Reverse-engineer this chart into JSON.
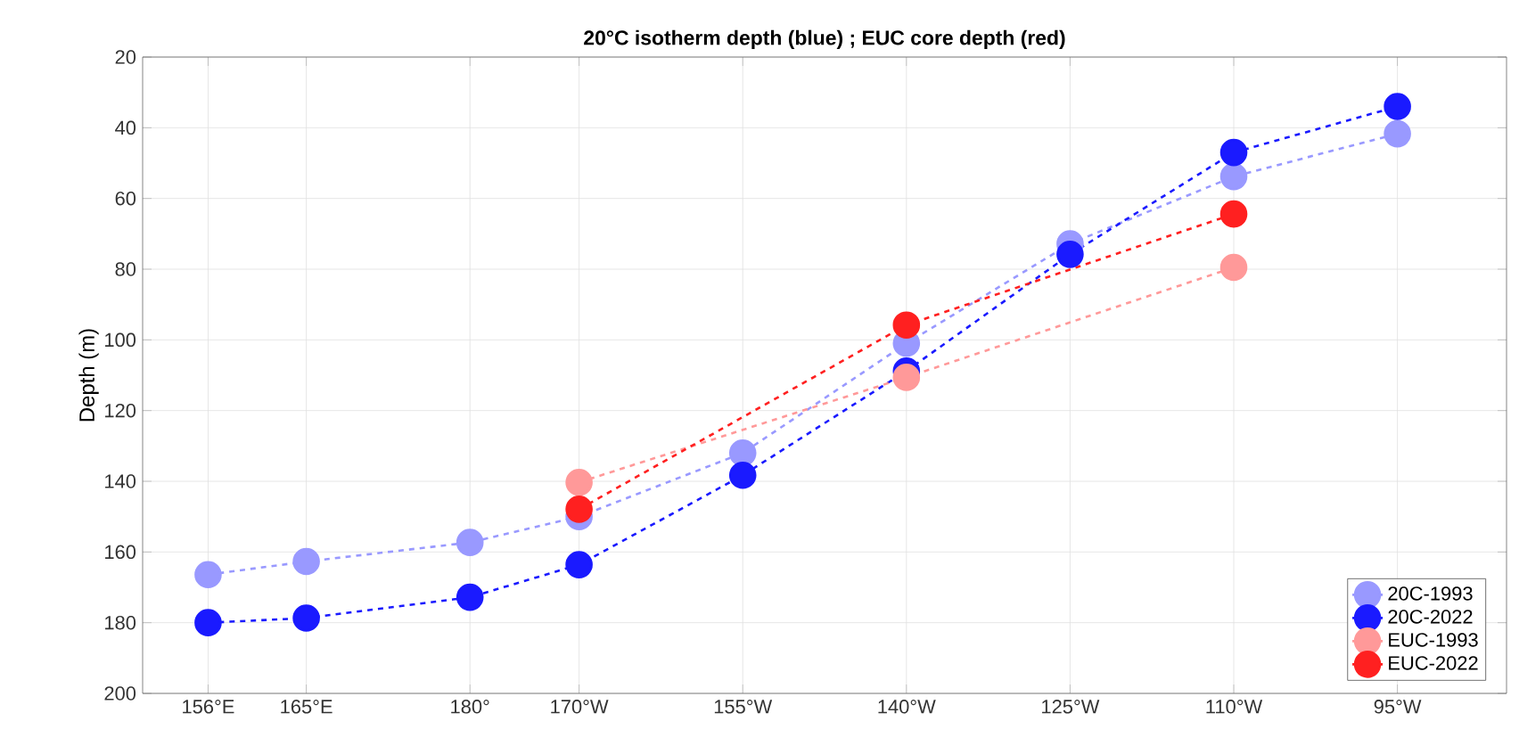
{
  "chart_data": {
    "type": "line",
    "title": "20°C isotherm depth (blue) ; EUC core depth (red)",
    "ylabel": "Depth (m)",
    "x": [
      156,
      165,
      180,
      190,
      205,
      220,
      235,
      250,
      265
    ],
    "xlim": [
      150,
      275
    ],
    "ylim": [
      200,
      20
    ],
    "xticks": [
      {
        "value": 156,
        "label": "156°E"
      },
      {
        "value": 165,
        "label": "165°E"
      },
      {
        "value": 180,
        "label": "180°"
      },
      {
        "value": 190,
        "label": "170°W"
      },
      {
        "value": 205,
        "label": "155°W"
      },
      {
        "value": 220,
        "label": "140°W"
      },
      {
        "value": 235,
        "label": "125°W"
      },
      {
        "value": 250,
        "label": "110°W"
      },
      {
        "value": 265,
        "label": "95°W"
      }
    ],
    "yticks": [
      20,
      40,
      60,
      80,
      100,
      120,
      140,
      160,
      180,
      200
    ],
    "grid": true,
    "legend": "bottom right",
    "marker": "circle",
    "line_style": "dashed",
    "series": [
      {
        "name": "20C-1993",
        "color": "#9999ff",
        "values": [
          166.4,
          162.7,
          157.3,
          150,
          132,
          101,
          72.8,
          53.8,
          41.7
        ]
      },
      {
        "name": "20C-2022",
        "color": "#1a1aff",
        "values": [
          180,
          178.7,
          172.8,
          163.6,
          138.3,
          108.8,
          75.8,
          47,
          34
        ]
      },
      {
        "name": "EUC-1993",
        "color": "#ff9999",
        "values": [
          null,
          null,
          null,
          140.3,
          null,
          110.6,
          null,
          79.5,
          null
        ]
      },
      {
        "name": "EUC-2022",
        "color": "#ff2020",
        "values": [
          null,
          null,
          null,
          147.9,
          null,
          95.8,
          null,
          64.4,
          null
        ]
      }
    ]
  }
}
